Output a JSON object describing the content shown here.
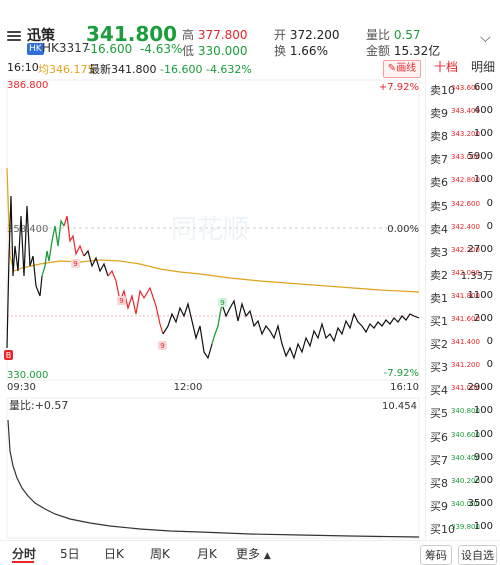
{
  "header": {
    "name": "迅策",
    "badge": "HK",
    "code": "HK3317",
    "price": "341.800",
    "change": "-16.600",
    "change_pct": "-4.63%",
    "high_label": "高",
    "high": "377.800",
    "low_label": "低",
    "low": "330.000",
    "open_label": "开",
    "open": "372.200",
    "turnover_label": "换",
    "turnover": "1.66%",
    "volratio_label": "量比",
    "volratio": "0.57",
    "amount_label": "金额",
    "amount": "15.32亿"
  },
  "infobar": {
    "time": "16:10",
    "avg_label": "均",
    "avg": "346.175",
    "latest_label": "最新",
    "latest": "341.800",
    "change": "-16.600",
    "change_pct": "-4.632%",
    "draw_button": "画线"
  },
  "chart": {
    "top_price": "386.800",
    "top_pct": "+7.92%",
    "mid_price": "358.400",
    "mid_pct": "0.00%",
    "bottom_price": "330.000",
    "bottom_pct": "-7.92%",
    "t_start": "09:30",
    "t_mid": "12:00",
    "t_end": "16:10",
    "volume_label": "量比:+0.57",
    "volume_max": "10.454",
    "watermark": "同花顺"
  },
  "colors": {
    "up": "#e8262a",
    "down": "#1b9d3b",
    "avg": "#e0a21b",
    "neutral": "#111111"
  },
  "panel": {
    "tab_active": "十档",
    "tab_other": "明细",
    "orders": [
      {
        "label": "卖10",
        "price": "343.600",
        "vol": "600"
      },
      {
        "label": "卖9",
        "price": "343.400",
        "vol": "400"
      },
      {
        "label": "卖8",
        "price": "343.200",
        "vol": "100"
      },
      {
        "label": "卖7",
        "price": "343.000",
        "vol": "5900"
      },
      {
        "label": "卖6",
        "price": "342.800",
        "vol": "100"
      },
      {
        "label": "卖5",
        "price": "342.600",
        "vol": "0"
      },
      {
        "label": "卖4",
        "price": "342.400",
        "vol": "0"
      },
      {
        "label": "卖3",
        "price": "342.200",
        "vol": "2700"
      },
      {
        "label": "卖2",
        "price": "342.000",
        "vol": "1.33万"
      },
      {
        "label": "卖1",
        "price": "341.800",
        "vol": "1100"
      },
      {
        "label": "买1",
        "price": "341.600",
        "vol": "200"
      },
      {
        "label": "买2",
        "price": "341.400",
        "vol": "0"
      },
      {
        "label": "买3",
        "price": "341.200",
        "vol": "0"
      },
      {
        "label": "买4",
        "price": "341.000",
        "vol": "2900"
      },
      {
        "label": "买5",
        "price": "340.800",
        "vol": "100"
      },
      {
        "label": "买6",
        "price": "340.600",
        "vol": "100"
      },
      {
        "label": "买7",
        "price": "340.400",
        "vol": "900"
      },
      {
        "label": "买8",
        "price": "340.200",
        "vol": "200"
      },
      {
        "label": "买9",
        "price": "340.000",
        "vol": "3500"
      },
      {
        "label": "买10",
        "price": "339.800",
        "vol": "100"
      }
    ]
  },
  "bottom": {
    "tabs": [
      "分时",
      "5日",
      "日K",
      "周K",
      "月K",
      "更多"
    ],
    "chips": "筹码",
    "settings": "设自选"
  }
}
